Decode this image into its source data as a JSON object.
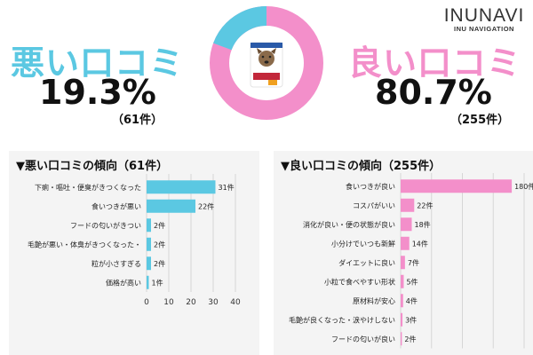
{
  "brand": {
    "name": "INUNAVI",
    "subtitle": "INU NAVIGATION"
  },
  "summary": {
    "negative": {
      "title": "悪い口コミ",
      "percent": "19.3%",
      "count": "（61件）",
      "share": 19.3,
      "color": "#5bc8e2"
    },
    "positive": {
      "title": "良い口コミ",
      "percent": "80.7%",
      "count": "（255件）",
      "share": 80.7,
      "color": "#f38fca"
    }
  },
  "chart_data": [
    {
      "type": "bar",
      "orientation": "horizontal",
      "title": "▼悪い口コミの傾向（61件）",
      "color": "#5bc8e2",
      "categories": [
        "下痢・嘔吐・便臭がきつくなった",
        "食いつきが悪い",
        "フードの匂いがきつい",
        "毛艶が悪い・体臭がきつくなった・",
        "粒が小さすぎる",
        "価格が高い"
      ],
      "values": [
        31,
        22,
        2,
        2,
        2,
        1
      ],
      "value_labels": [
        "31件",
        "22件",
        "2件",
        "2件",
        "2件",
        "1件"
      ],
      "xlim": [
        0,
        40
      ],
      "xticks": [
        0,
        10,
        20,
        30,
        40
      ],
      "grid": true
    },
    {
      "type": "bar",
      "orientation": "horizontal",
      "title": "▼良い口コミの傾向（255件）",
      "color": "#f38fca",
      "categories": [
        "食いつきが良い",
        "コスパがいい",
        "消化が良い・便の状態が良い",
        "小分けでいつも新鮮",
        "ダイエットに良い",
        "小粒で食べやすい形状",
        "原材料が安心",
        "毛艶が良くなった・涙やけしない",
        "フードの匂いが良い"
      ],
      "values": [
        180,
        22,
        18,
        14,
        7,
        5,
        4,
        3,
        2
      ],
      "value_labels": [
        "180件",
        "22件",
        "18件",
        "14件",
        "7件",
        "5件",
        "4件",
        "3件",
        "2件"
      ],
      "xlim": [
        0,
        200
      ],
      "xticks": [
        0,
        50,
        100,
        150,
        200
      ],
      "grid": true
    }
  ]
}
